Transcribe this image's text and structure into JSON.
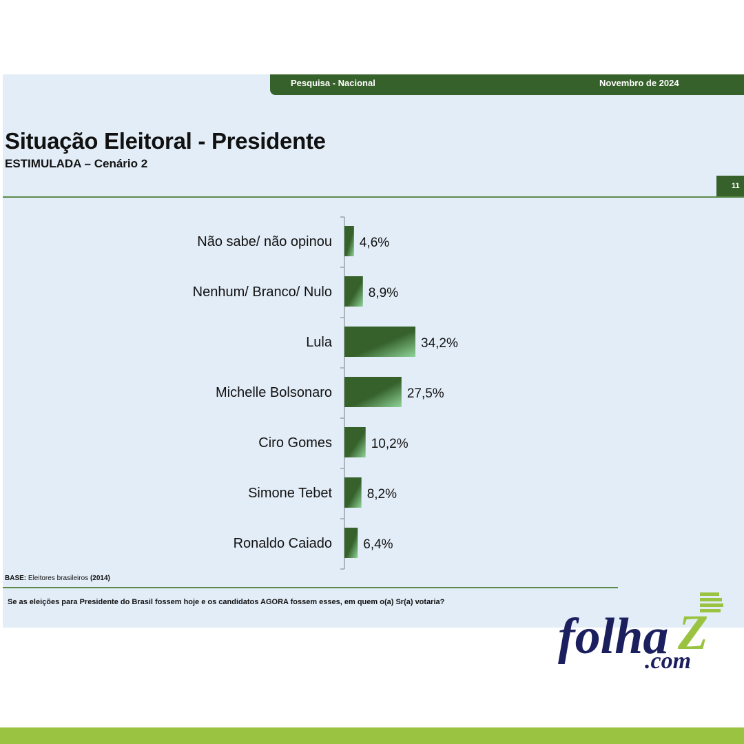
{
  "header": {
    "left_label": "Pesquisa - Nacional",
    "right_label": "Novembro de 2024",
    "page_number": "11"
  },
  "title": "Situação Eleitoral - Presidente",
  "subtitle": "ESTIMULADA – Cenário 2",
  "chart_data": {
    "type": "bar",
    "orientation": "horizontal",
    "categories": [
      "Não sabe/ não opinou",
      "Nenhum/ Branco/ Nulo",
      "Lula",
      "Michelle Bolsonaro",
      "Ciro Gomes",
      "Simone Tebet",
      "Ronaldo Caiado"
    ],
    "values": [
      4.6,
      8.9,
      34.2,
      27.5,
      10.2,
      8.2,
      6.4
    ],
    "value_labels": [
      "4,6%",
      "8,9%",
      "34,2%",
      "27,5%",
      "10,2%",
      "8,2%",
      "6,4%"
    ],
    "unit": "%",
    "bar_color": "#36612b",
    "bar_highlight": "#7fc98a"
  },
  "footer": {
    "base_label": "BASE:",
    "base_text": "Eleitores brasileiros",
    "base_year": "(2014)",
    "question": "Se as eleições para Presidente do Brasil fossem hoje e os candidatos AGORA fossem esses, em quem o(a) Sr(a) votaria?"
  },
  "logo": {
    "word": "folha",
    "letter": "Z",
    "suffix": ".com"
  },
  "colors": {
    "brand_green": "#36612b",
    "slide_bg": "#e3edf7",
    "lime": "#9ac341",
    "navy": "#1b1f5e"
  }
}
